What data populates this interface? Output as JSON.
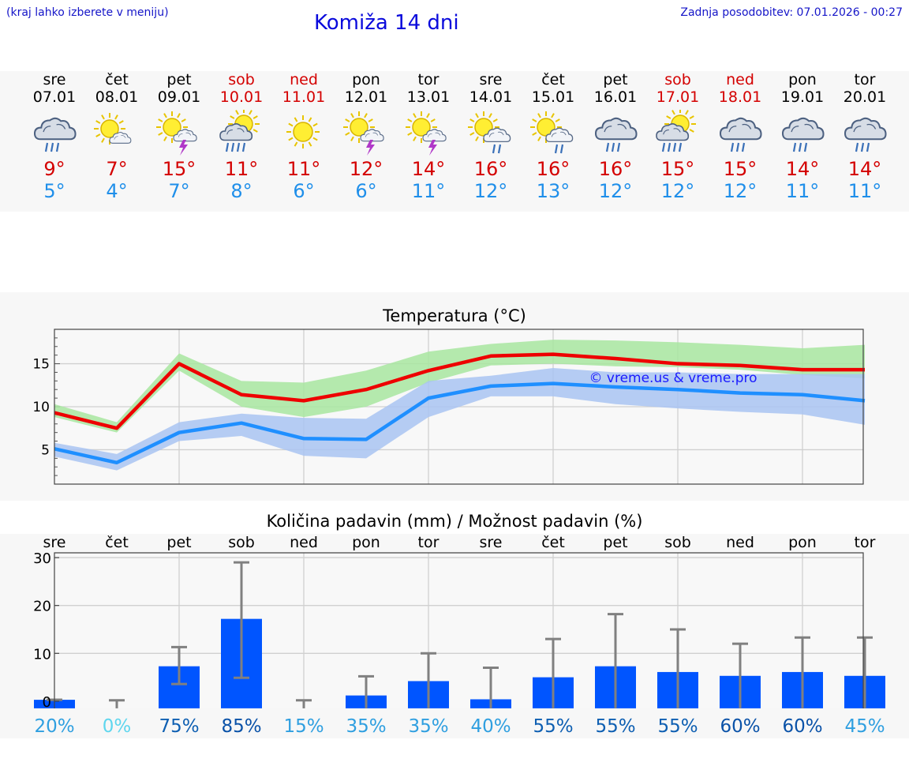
{
  "header": {
    "left_note": "(kraj lahko izberete v meniju)",
    "title": "Komiža 14 dni",
    "updated": "Zadnja posodobitev: 07.01.2026 - 00:27"
  },
  "days": [
    {
      "name": "sre",
      "date": "07.01",
      "weekend": false,
      "icon": "cloud-rain-icon",
      "tmax": "9°",
      "tmin": "5°"
    },
    {
      "name": "čet",
      "date": "08.01",
      "weekend": false,
      "icon": "sun-cloud-icon",
      "tmax": "7°",
      "tmin": "4°"
    },
    {
      "name": "pet",
      "date": "09.01",
      "weekend": false,
      "icon": "sun-storm-icon",
      "tmax": "15°",
      "tmin": "7°"
    },
    {
      "name": "sob",
      "date": "10.01",
      "weekend": true,
      "icon": "sun-cloud-rain-icon",
      "tmax": "11°",
      "tmin": "8°"
    },
    {
      "name": "ned",
      "date": "11.01",
      "weekend": true,
      "icon": "sun-icon",
      "tmax": "11°",
      "tmin": "6°"
    },
    {
      "name": "pon",
      "date": "12.01",
      "weekend": false,
      "icon": "sun-storm-icon",
      "tmax": "12°",
      "tmin": "6°"
    },
    {
      "name": "tor",
      "date": "13.01",
      "weekend": false,
      "icon": "sun-storm-icon",
      "tmax": "14°",
      "tmin": "11°"
    },
    {
      "name": "sre",
      "date": "14.01",
      "weekend": false,
      "icon": "sun-cloud-shower-icon",
      "tmax": "16°",
      "tmin": "12°"
    },
    {
      "name": "čet",
      "date": "15.01",
      "weekend": false,
      "icon": "sun-cloud-shower-icon",
      "tmax": "16°",
      "tmin": "13°"
    },
    {
      "name": "pet",
      "date": "16.01",
      "weekend": false,
      "icon": "cloud-rain-icon",
      "tmax": "16°",
      "tmin": "12°"
    },
    {
      "name": "sob",
      "date": "17.01",
      "weekend": true,
      "icon": "sun-cloud-rain-icon",
      "tmax": "15°",
      "tmin": "12°"
    },
    {
      "name": "ned",
      "date": "18.01",
      "weekend": true,
      "icon": "cloud-rain-icon",
      "tmax": "15°",
      "tmin": "12°"
    },
    {
      "name": "pon",
      "date": "19.01",
      "weekend": false,
      "icon": "cloud-rain-icon",
      "tmax": "14°",
      "tmin": "11°"
    },
    {
      "name": "tor",
      "date": "20.01",
      "weekend": false,
      "icon": "cloud-rain-icon",
      "tmax": "14°",
      "tmin": "11°"
    }
  ],
  "colors": {
    "max_line": "#ee0000",
    "max_band": "#a8e6a0",
    "min_line": "#1f8fff",
    "min_band": "#a9c4f2",
    "bar": "#0055ff",
    "whisker": "#808080",
    "weekday": "#000000",
    "weekend": "#d40000"
  },
  "chart_data": [
    {
      "type": "line",
      "title": "Temperatura (°C)",
      "watermark": "© vreme.us & vreme.pro",
      "x": [
        0,
        1,
        2,
        3,
        4,
        5,
        6,
        7,
        8,
        9,
        10,
        11,
        12,
        13
      ],
      "ylim": [
        1,
        19
      ],
      "yticks": [
        5,
        10,
        15
      ],
      "series": [
        {
          "name": "max",
          "values": [
            9.3,
            7.5,
            15.0,
            11.4,
            10.7,
            12.0,
            14.2,
            15.9,
            16.1,
            15.6,
            15.0,
            14.8,
            14.3,
            14.3
          ]
        },
        {
          "name": "max_band_high",
          "values": [
            10.3,
            8.2,
            16.2,
            13.0,
            12.8,
            14.2,
            16.4,
            17.3,
            17.8,
            17.7,
            17.5,
            17.2,
            16.8,
            17.2
          ]
        },
        {
          "name": "max_band_low",
          "values": [
            8.8,
            7.0,
            14.2,
            10.0,
            8.8,
            10.0,
            12.8,
            14.8,
            15.0,
            14.7,
            14.6,
            14.3,
            13.7,
            13.3
          ]
        },
        {
          "name": "min",
          "values": [
            5.1,
            3.5,
            7.0,
            8.1,
            6.3,
            6.2,
            11.0,
            12.4,
            12.7,
            12.3,
            12.0,
            11.6,
            11.4,
            10.7
          ]
        },
        {
          "name": "min_band_high",
          "values": [
            5.8,
            4.5,
            8.2,
            9.2,
            8.7,
            8.6,
            13.0,
            13.6,
            14.5,
            14.0,
            14.0,
            13.8,
            13.8,
            13.8
          ]
        },
        {
          "name": "min_band_low",
          "values": [
            4.2,
            2.6,
            6.0,
            6.6,
            4.3,
            4.0,
            8.8,
            11.2,
            11.2,
            10.3,
            9.8,
            9.4,
            9.1,
            7.9
          ]
        }
      ]
    },
    {
      "type": "bar",
      "title": "Količina padavin (mm) / Možnost padavin (%)",
      "categories": [
        "sre",
        "čet",
        "pet",
        "sob",
        "ned",
        "pon",
        "tor",
        "sre",
        "čet",
        "pet",
        "sob",
        "ned",
        "pon",
        "tor"
      ],
      "ylim": [
        -1.5,
        31
      ],
      "yticks": [
        0,
        10,
        20,
        30
      ],
      "values": [
        0.3,
        0,
        7.3,
        17.2,
        0,
        1.2,
        4.2,
        0.4,
        5.0,
        7.3,
        6.1,
        5.3,
        6.1,
        5.3
      ],
      "whisker_low": [
        0.3,
        0,
        3.6,
        4.9,
        0,
        0,
        0,
        0,
        0,
        0,
        0,
        0,
        0,
        0
      ],
      "whisker_high": [
        0.3,
        0.2,
        11.3,
        29.0,
        0.2,
        5.2,
        10.0,
        7.0,
        13.0,
        18.2,
        15.0,
        12.0,
        13.3,
        13.3
      ],
      "probability": [
        "20%",
        "0%",
        "75%",
        "85%",
        "15%",
        "35%",
        "35%",
        "40%",
        "55%",
        "55%",
        "55%",
        "60%",
        "60%",
        "45%"
      ],
      "probability_colors": [
        "#2f9fe0",
        "#5ed6ee",
        "#0e5fb2",
        "#0a52a8",
        "#2f9fe0",
        "#2f9fe0",
        "#2f9fe0",
        "#2f9fe0",
        "#0e5fb2",
        "#0e5fb2",
        "#0e5fb2",
        "#0a52a8",
        "#0a52a8",
        "#2f9fe0"
      ]
    }
  ]
}
